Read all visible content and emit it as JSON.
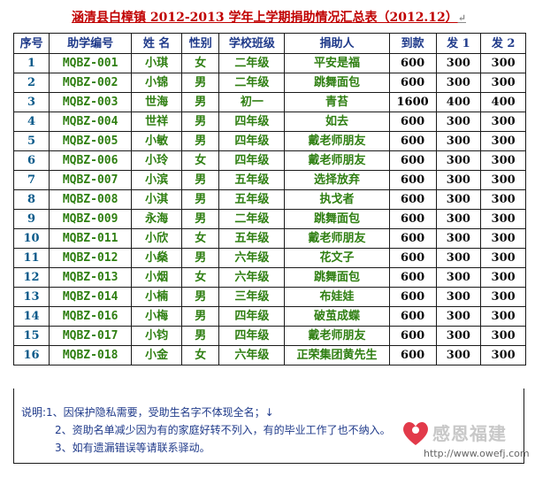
{
  "title": "涵清县白樟镇 2012-2013 学年上学期捐助情况汇总表（2012.12）",
  "title_mark": "↵",
  "headers": [
    "序号",
    "助学编号",
    "姓 名",
    "性别",
    "学校班级",
    "捐助人",
    "到款",
    "发 1",
    "发 2"
  ],
  "rows": [
    {
      "id": "1",
      "code": "MQBZ-001",
      "name": "小琪",
      "sex": "女",
      "grade": "二年级",
      "donor": "平安是福",
      "amount": "600",
      "f1": "300",
      "f2": "300"
    },
    {
      "id": "2",
      "code": "MQBZ-002",
      "name": "小锦",
      "sex": "男",
      "grade": "二年级",
      "donor": "跳舞面包",
      "amount": "600",
      "f1": "300",
      "f2": "300"
    },
    {
      "id": "3",
      "code": "MQBZ-003",
      "name": "世海",
      "sex": "男",
      "grade": "初一",
      "donor": "青苔",
      "amount": "1600",
      "f1": "400",
      "f2": "400"
    },
    {
      "id": "4",
      "code": "MQBZ-004",
      "name": "世祥",
      "sex": "男",
      "grade": "四年级",
      "donor": "如去",
      "amount": "600",
      "f1": "300",
      "f2": "300"
    },
    {
      "id": "5",
      "code": "MQBZ-005",
      "name": "小敏",
      "sex": "男",
      "grade": "四年级",
      "donor": "戴老师朋友",
      "amount": "600",
      "f1": "300",
      "f2": "300"
    },
    {
      "id": "6",
      "code": "MQBZ-006",
      "name": "小玲",
      "sex": "女",
      "grade": "四年级",
      "donor": "戴老师朋友",
      "amount": "600",
      "f1": "300",
      "f2": "300"
    },
    {
      "id": "7",
      "code": "MQBZ-007",
      "name": "小滨",
      "sex": "男",
      "grade": "五年级",
      "donor": "选择放弃",
      "amount": "600",
      "f1": "300",
      "f2": "300"
    },
    {
      "id": "8",
      "code": "MQBZ-008",
      "name": "小淇",
      "sex": "男",
      "grade": "五年级",
      "donor": "执戈者",
      "amount": "600",
      "f1": "300",
      "f2": "300"
    },
    {
      "id": "9",
      "code": "MQBZ-009",
      "name": "永海",
      "sex": "男",
      "grade": "二年级",
      "donor": "跳舞面包",
      "amount": "600",
      "f1": "300",
      "f2": "300"
    },
    {
      "id": "10",
      "code": "MQBZ-011",
      "name": "小欣",
      "sex": "女",
      "grade": "五年级",
      "donor": "戴老师朋友",
      "amount": "600",
      "f1": "300",
      "f2": "300"
    },
    {
      "id": "11",
      "code": "MQBZ-012",
      "name": "小燊",
      "sex": "男",
      "grade": "六年级",
      "donor": "花文子",
      "amount": "600",
      "f1": "300",
      "f2": "300"
    },
    {
      "id": "12",
      "code": "MQBZ-013",
      "name": "小烟",
      "sex": "女",
      "grade": "六年级",
      "donor": "跳舞面包",
      "amount": "600",
      "f1": "300",
      "f2": "300"
    },
    {
      "id": "13",
      "code": "MQBZ-014",
      "name": "小楠",
      "sex": "男",
      "grade": "三年级",
      "donor": "布娃娃",
      "amount": "600",
      "f1": "300",
      "f2": "300"
    },
    {
      "id": "14",
      "code": "MQBZ-016",
      "name": "小梅",
      "sex": "男",
      "grade": "四年级",
      "donor": "破茧成蝶",
      "amount": "600",
      "f1": "300",
      "f2": "300"
    },
    {
      "id": "15",
      "code": "MQBZ-017",
      "name": "小钧",
      "sex": "男",
      "grade": "四年级",
      "donor": "戴老师朋友",
      "amount": "600",
      "f1": "300",
      "f2": "300"
    },
    {
      "id": "16",
      "code": "MQBZ-018",
      "name": "小金",
      "sex": "女",
      "grade": "六年级",
      "donor": "正荣集团黄先生",
      "amount": "600",
      "f1": "300",
      "f2": "300"
    }
  ],
  "notes": [
    "说明:1、因保护隐私需要，受助生名字不体现全名；↓",
    "2、资助名单减少因为有的家庭好转不列入，有的毕业工作了也不纳入。",
    "3、如有遗漏错误等请联系驿动。"
  ],
  "logo": {
    "text": "感恩福建",
    "url": "http://www.owefj.com",
    "accent": "#e23a4a"
  }
}
